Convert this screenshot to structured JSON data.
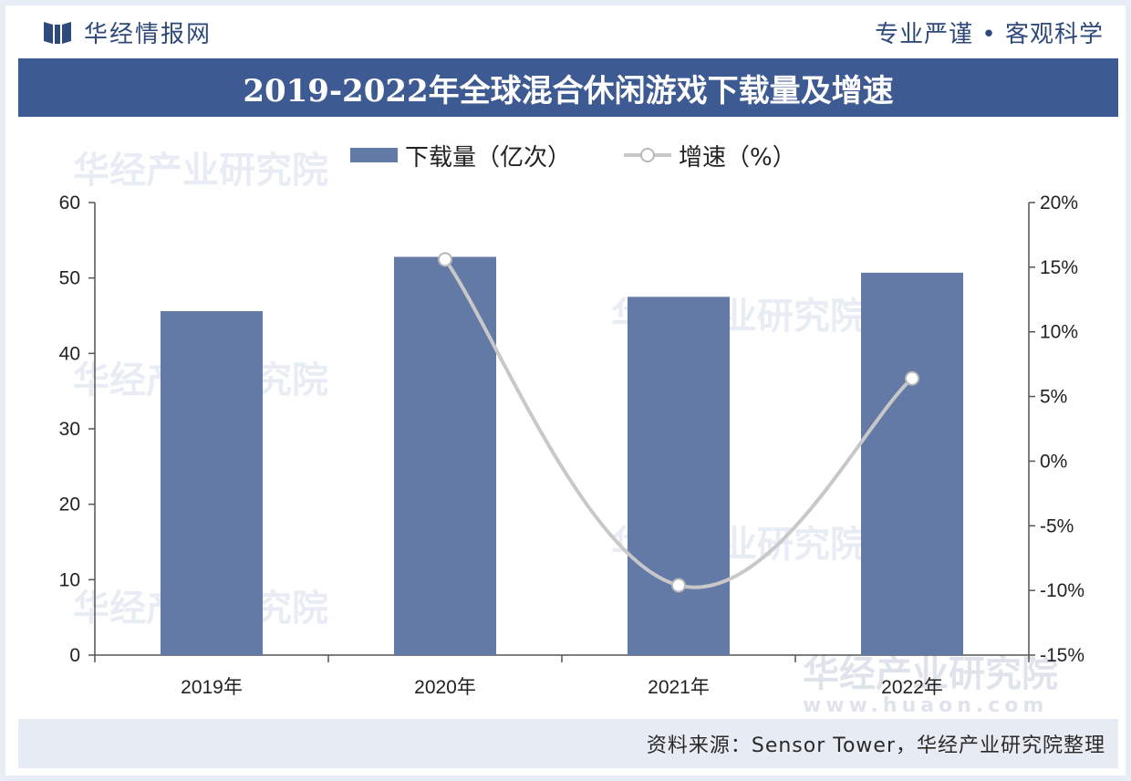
{
  "header": {
    "brand_name": "华经情报网",
    "slogan": "专业严谨 • 客观科学",
    "title": "2019-2022年全球混合休闲游戏下载量及增速"
  },
  "footer": {
    "source": "资料来源：Sensor Tower，华经产业研究院整理"
  },
  "watermark": {
    "name": "华经产业研究院",
    "url": "www.huaon.com"
  },
  "colors": {
    "bar": "#6379a6",
    "line": "#c8c8c8",
    "title_bg": "#3d5a92",
    "brand": "#2f4a7a"
  },
  "chart_data": {
    "type": "bar",
    "title": "2019-2022年全球混合休闲游戏下载量及增速",
    "categories": [
      "2019年",
      "2020年",
      "2021年",
      "2022年"
    ],
    "series": [
      {
        "name": "下载量（亿次）",
        "type": "bar",
        "axis": "left",
        "values": [
          45.6,
          52.8,
          47.5,
          50.7
        ]
      },
      {
        "name": "增速（%）",
        "type": "line",
        "axis": "right",
        "values": [
          null,
          15.6,
          -9.6,
          6.4
        ]
      }
    ],
    "y_left": {
      "min": 0,
      "max": 60,
      "ticks": [
        "0",
        "10",
        "20",
        "30",
        "40",
        "50",
        "60"
      ]
    },
    "y_right": {
      "min": -15,
      "max": 20,
      "ticks": [
        "-15%",
        "-10%",
        "-5%",
        "0%",
        "5%",
        "10%",
        "15%",
        "20%"
      ]
    },
    "legend_position": "top-center",
    "grid": false
  }
}
